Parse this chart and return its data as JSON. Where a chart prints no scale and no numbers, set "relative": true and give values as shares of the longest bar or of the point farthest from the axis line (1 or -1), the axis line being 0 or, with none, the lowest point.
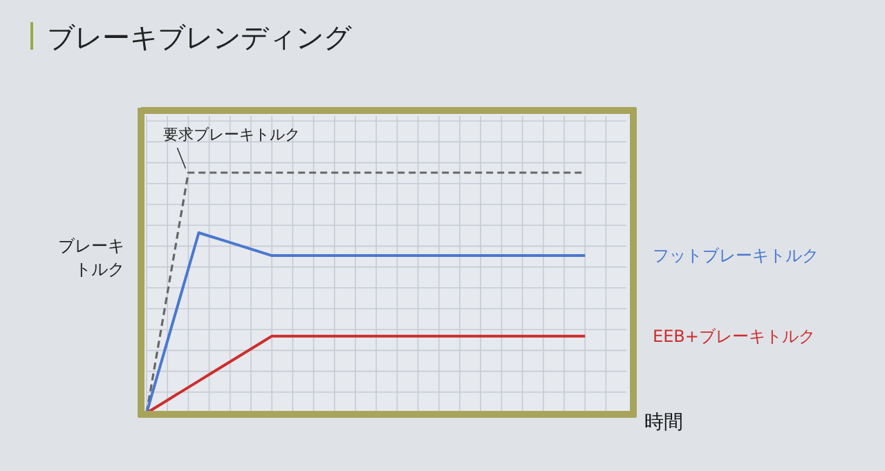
{
  "chart_data": {
    "type": "line",
    "title": "ブレーキブレンディング",
    "xlabel": "時間",
    "ylabel": "ブレーキトルク",
    "relative": true,
    "grid": true,
    "categories": [
      null,
      null,
      null,
      null,
      null,
      null,
      null,
      null,
      null,
      null,
      null,
      null,
      null,
      null,
      null,
      null,
      null,
      null,
      null,
      null,
      null,
      null,
      null,
      null,
      null,
      null,
      null,
      null,
      null,
      null,
      null,
      null,
      null,
      null,
      null,
      null,
      null,
      null,
      null,
      null,
      null,
      null,
      null
    ],
    "series": [
      {
        "name": "要求ブレーキトルク",
        "color": "#666666",
        "line_style": "dashed",
        "values": [
          0,
          0.25,
          0.5,
          0.75,
          1,
          1,
          1,
          1,
          1,
          1,
          1,
          1,
          1,
          1,
          1,
          1,
          1,
          1,
          1,
          1,
          1,
          1,
          1,
          1,
          1,
          1,
          1,
          1,
          1,
          1,
          1,
          1,
          1,
          1,
          1,
          1,
          1,
          1,
          1,
          1,
          1,
          1,
          1
        ]
      },
      {
        "name": "フットブレーキトルク",
        "color": "#4a78cf",
        "values": [
          0,
          0.15,
          0.3,
          0.45,
          0.6,
          0.75,
          0.7364,
          0.7229,
          0.7093,
          0.6957,
          0.6821,
          0.6686,
          0.655,
          0.655,
          0.655,
          0.655,
          0.655,
          0.655,
          0.655,
          0.655,
          0.655,
          0.655,
          0.655,
          0.655,
          0.655,
          0.655,
          0.655,
          0.655,
          0.655,
          0.655,
          0.655,
          0.655,
          0.655,
          0.655,
          0.655,
          0.655,
          0.655,
          0.655,
          0.655,
          0.655,
          0.655,
          0.655,
          0.655
        ]
      },
      {
        "name": "EEB+ブレーキトルク",
        "color": "#cc2e2e",
        "values": [
          0,
          0.0267,
          0.0533,
          0.08,
          0.1067,
          0.1333,
          0.16,
          0.1867,
          0.2133,
          0.24,
          0.2667,
          0.2933,
          0.32,
          0.32,
          0.32,
          0.32,
          0.32,
          0.32,
          0.32,
          0.32,
          0.32,
          0.32,
          0.32,
          0.32,
          0.32,
          0.32,
          0.32,
          0.32,
          0.32,
          0.32,
          0.32,
          0.32,
          0.32,
          0.32,
          0.32,
          0.32,
          0.32,
          0.32,
          0.32,
          0.32,
          0.32,
          0.32,
          0.32
        ]
      }
    ]
  }
}
